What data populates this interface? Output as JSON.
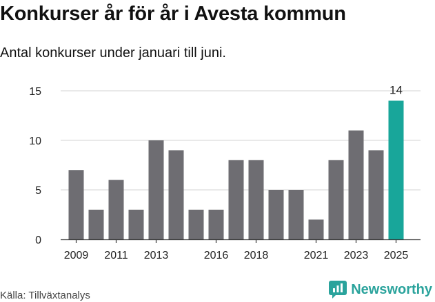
{
  "header": {
    "title": "Konkurser år för år i Avesta kommun",
    "subtitle": "Antal konkurser under januari till juni."
  },
  "footer": {
    "source": "Källa: Tillväxtanalys",
    "brand": "Newsworthy",
    "brand_icon": "newsworthy-logo-icon"
  },
  "colors": {
    "bar": "#6e6d72",
    "highlight": "#18a69a",
    "grid": "#dcdcdc",
    "brand": "#2aa39c"
  },
  "chart_data": {
    "type": "bar",
    "x": [
      2009,
      2010,
      2011,
      2012,
      2013,
      2014,
      2015,
      2016,
      2017,
      2018,
      2019,
      2020,
      2021,
      2022,
      2023,
      2024,
      2025
    ],
    "values": [
      7,
      3,
      6,
      3,
      10,
      9,
      3,
      3,
      8,
      8,
      5,
      5,
      2,
      8,
      11,
      9,
      14
    ],
    "highlight_index": 16,
    "value_labels": [
      {
        "index": 16,
        "text": "14"
      }
    ],
    "ylim": [
      0,
      15
    ],
    "yticks": [
      0,
      5,
      10,
      15
    ],
    "xtick_labels": [
      "2009",
      "2011",
      "2013",
      "2016",
      "2018",
      "2021",
      "2023",
      "2025"
    ],
    "grid": true
  }
}
